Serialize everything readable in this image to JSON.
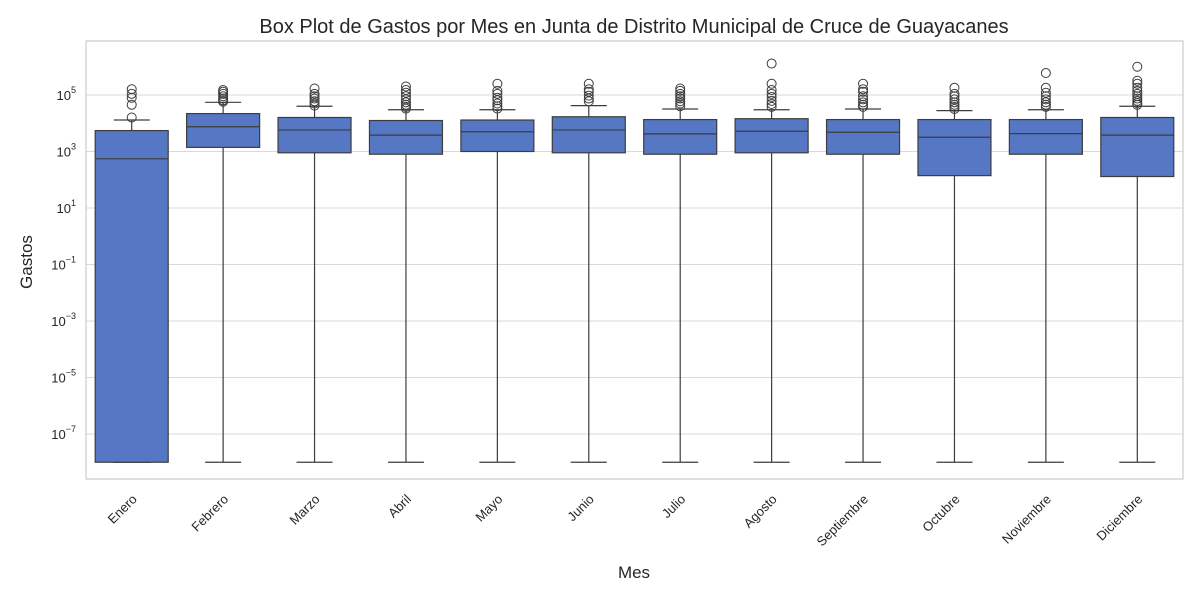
{
  "chart_data": {
    "type": "box",
    "title": "Box Plot de Gastos por Mes en Junta de Distrito Municipal de Cruce de Guayacanes",
    "xlabel": "Mes",
    "ylabel": "Gastos",
    "yscale": "log",
    "ylim": [
      1e-09,
      10000000.0
    ],
    "yticks": [
      {
        "value": 100000.0,
        "base": "10",
        "exp": "5"
      },
      {
        "value": 1000.0,
        "base": "10",
        "exp": "3"
      },
      {
        "value": 10.0,
        "base": "10",
        "exp": "1"
      },
      {
        "value": 0.1,
        "base": "10",
        "exp": "−1"
      },
      {
        "value": 0.001,
        "base": "10",
        "exp": "−3"
      },
      {
        "value": 1e-05,
        "base": "10",
        "exp": "−5"
      },
      {
        "value": 1e-07,
        "base": "10",
        "exp": "−7"
      }
    ],
    "grid": true,
    "box_color": "#5577c4",
    "line_color": "#3d3d3d",
    "categories": [
      "Enero",
      "Febrero",
      "Marzo",
      "Abril",
      "Mayo",
      "Junio",
      "Julio",
      "Agosto",
      "Septiembre",
      "Octubre",
      "Noviembre",
      "Diciembre"
    ],
    "boxes": [
      {
        "whislo": 1e-08,
        "q1": 1e-08,
        "med": 550,
        "q3": 5500,
        "whishi": 13000,
        "fliers": [
          16000,
          45000,
          80000,
          110000,
          160000
        ]
      },
      {
        "whislo": 1e-08,
        "q1": 1400,
        "med": 7500,
        "q3": 22000,
        "whishi": 55000,
        "fliers": [
          58000,
          65000,
          75000,
          90000,
          110000,
          130000,
          150000
        ]
      },
      {
        "whislo": 1e-08,
        "q1": 900,
        "med": 5800,
        "q3": 16000,
        "whishi": 40000,
        "fliers": [
          42000,
          50000,
          60000,
          75000,
          90000,
          110000,
          170000
        ]
      },
      {
        "whislo": 1e-08,
        "q1": 800,
        "med": 3800,
        "q3": 12500,
        "whishi": 30000,
        "fliers": [
          33000,
          38000,
          45000,
          55000,
          70000,
          90000,
          120000,
          150000,
          200000
        ]
      },
      {
        "whislo": 1e-08,
        "q1": 1000,
        "med": 5000,
        "q3": 13000,
        "whishi": 30000,
        "fliers": [
          33000,
          40000,
          50000,
          65000,
          80000,
          110000,
          140000,
          250000
        ]
      },
      {
        "whislo": 1e-08,
        "q1": 900,
        "med": 5800,
        "q3": 17000,
        "whishi": 42000,
        "fliers": [
          60000,
          75000,
          95000,
          130000,
          160000,
          250000
        ]
      },
      {
        "whislo": 1e-08,
        "q1": 800,
        "med": 4200,
        "q3": 13500,
        "whishi": 32000,
        "fliers": [
          40000,
          50000,
          60000,
          75000,
          90000,
          110000,
          140000,
          170000
        ]
      },
      {
        "whislo": 1e-08,
        "q1": 900,
        "med": 5200,
        "q3": 14500,
        "whishi": 30000,
        "fliers": [
          38000,
          48000,
          62000,
          85000,
          110000,
          150000,
          250000,
          1300000
        ]
      },
      {
        "whislo": 1e-08,
        "q1": 800,
        "med": 4800,
        "q3": 13500,
        "whishi": 32000,
        "fliers": [
          38000,
          45000,
          55000,
          70000,
          90000,
          130000,
          160000,
          250000
        ]
      },
      {
        "whislo": 1e-08,
        "q1": 140,
        "med": 3200,
        "q3": 13500,
        "whishi": 28000,
        "fliers": [
          32000,
          38000,
          45000,
          55000,
          70000,
          90000,
          110000,
          180000
        ]
      },
      {
        "whislo": 1e-08,
        "q1": 800,
        "med": 4300,
        "q3": 13500,
        "whishi": 30000,
        "fliers": [
          38000,
          45000,
          55000,
          70000,
          90000,
          120000,
          180000,
          600000
        ]
      },
      {
        "whislo": 1e-08,
        "q1": 130,
        "med": 3800,
        "q3": 16000,
        "whishi": 40000,
        "fliers": [
          45000,
          52000,
          62000,
          75000,
          90000,
          110000,
          140000,
          180000,
          250000,
          320000,
          1000000
        ]
      }
    ]
  }
}
